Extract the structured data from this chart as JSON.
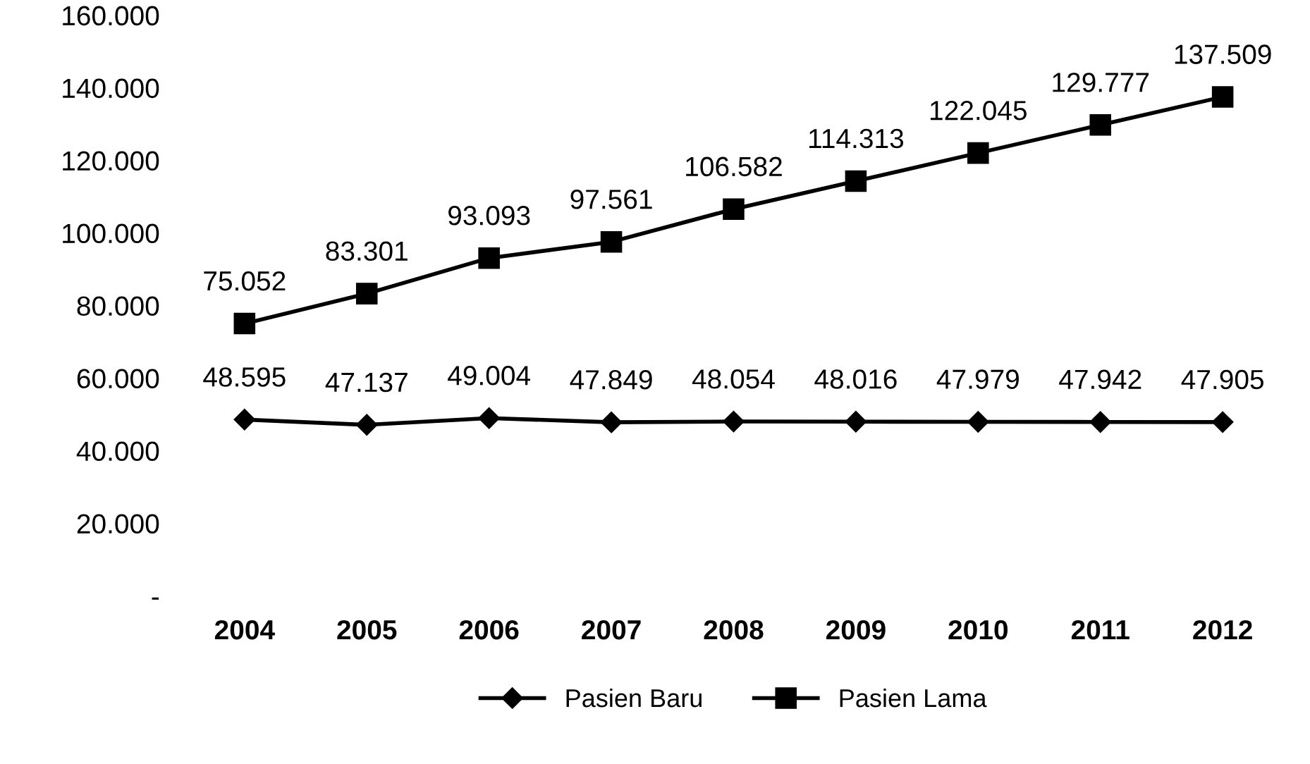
{
  "chart_data": {
    "type": "line",
    "categories": [
      "2004",
      "2005",
      "2006",
      "2007",
      "2008",
      "2009",
      "2010",
      "2011",
      "2012"
    ],
    "ylim": [
      0,
      160000
    ],
    "yticks": [
      {
        "value": 0,
        "label": "-"
      },
      {
        "value": 20000,
        "label": "20.000"
      },
      {
        "value": 40000,
        "label": "40.000"
      },
      {
        "value": 60000,
        "label": "60.000"
      },
      {
        "value": 80000,
        "label": "80.000"
      },
      {
        "value": 100000,
        "label": "100.000"
      },
      {
        "value": 120000,
        "label": "120.000"
      },
      {
        "value": 140000,
        "label": "140.000"
      },
      {
        "value": 160000,
        "label": "160.000"
      }
    ],
    "grid": false,
    "legend": "bottom",
    "line_style": "solid",
    "series": [
      {
        "name": "Pasien Baru",
        "color": "#000000",
        "marker": "diamond",
        "values": [
          48595,
          47137,
          49004,
          47849,
          48054,
          48016,
          47979,
          47942,
          47905
        ],
        "value_labels": [
          "48.595",
          "47.137",
          "49.004",
          "47.849",
          "48.054",
          "48.016",
          "47.979",
          "47.942",
          "47.905"
        ]
      },
      {
        "name": "Pasien Lama",
        "color": "#000000",
        "marker": "square",
        "values": [
          75052,
          83301,
          93093,
          97561,
          106582,
          114313,
          122045,
          129777,
          137509
        ],
        "value_labels": [
          "75.052",
          "83.301",
          "93.093",
          "97.561",
          "106.582",
          "114.313",
          "122.045",
          "129.777",
          "137.509"
        ]
      }
    ]
  }
}
